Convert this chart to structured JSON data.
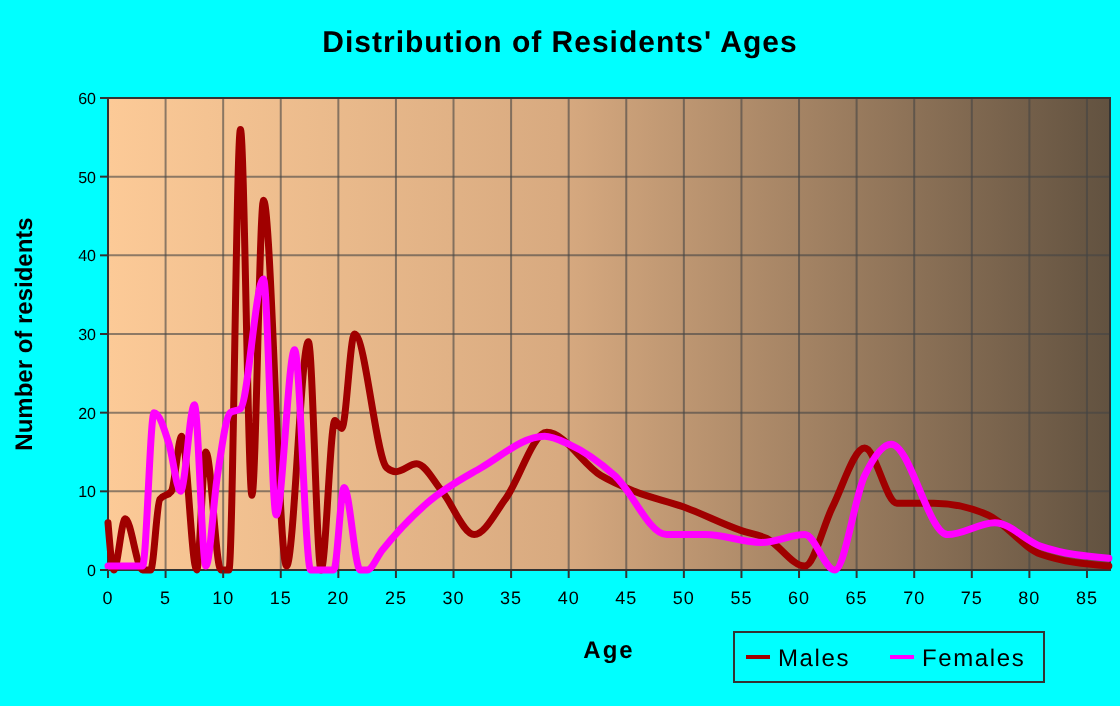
{
  "chart_data": {
    "type": "line",
    "title": "Distribution of Residents' Ages",
    "xlabel": "Age",
    "ylabel": "Number of residents",
    "xlim": [
      0,
      87
    ],
    "ylim": [
      0,
      60
    ],
    "xticks": [
      0,
      5,
      10,
      15,
      20,
      25,
      30,
      35,
      40,
      45,
      50,
      55,
      60,
      65,
      70,
      75,
      80,
      85
    ],
    "yticks": [
      0,
      10,
      20,
      30,
      40,
      50,
      60
    ],
    "grid": true,
    "legend": "bottom right",
    "marker": "none",
    "line_style": "solid",
    "series": [
      {
        "name": "Males",
        "color": "#a00000",
        "x": [
          0,
          0.5,
          1.5,
          3,
          3.7,
          4.5,
          5.5,
          6.4,
          7.7,
          8.5,
          9.8,
          10.5,
          11.5,
          12.5,
          13.5,
          15.5,
          17.4,
          18.5,
          19.7,
          20.3,
          21.4,
          24.2,
          25,
          26.8,
          29,
          31.8,
          34.5,
          38.1,
          42.8,
          45.7,
          50,
          55,
          57.2,
          60.5,
          62.9,
          65.7,
          68.5,
          71.7,
          76.4,
          81,
          86.9
        ],
        "values": [
          6,
          0,
          6.5,
          0,
          0,
          9,
          10,
          17,
          0,
          15,
          0,
          0,
          56,
          9.5,
          47,
          0.5,
          29,
          0,
          19,
          18,
          30,
          13,
          12.5,
          13.5,
          10,
          4.5,
          9,
          17.5,
          12,
          10,
          8,
          5,
          4,
          0.5,
          8,
          15.5,
          8.5,
          8.5,
          7,
          2,
          0.5
        ]
      },
      {
        "name": "Females",
        "color": "#ff00ff",
        "x": [
          0,
          3,
          4,
          5.3,
          6.3,
          7.5,
          8.5,
          9.5,
          10.6,
          11.5,
          13.5,
          14.6,
          16.2,
          17.6,
          19.6,
          20.5,
          21.9,
          22.5,
          23.8,
          27.7,
          32.4,
          37.9,
          40,
          44,
          48.5,
          51.9,
          56.7,
          60.5,
          63.1,
          65.7,
          68,
          72.9,
          77,
          81,
          86.9
        ],
        "values": [
          0.5,
          0.5,
          20,
          16,
          10,
          21,
          0.5,
          12,
          20,
          20.5,
          37,
          7,
          28,
          0,
          0,
          10.5,
          0,
          0,
          2.5,
          8.5,
          13,
          17,
          16,
          12,
          4.5,
          4.5,
          3.5,
          4.5,
          0,
          12,
          16,
          4.5,
          6,
          3,
          1.5
        ]
      }
    ]
  }
}
